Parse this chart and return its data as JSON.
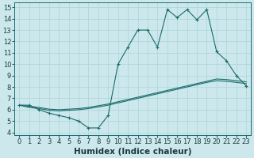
{
  "xlabel": "Humidex (Indice chaleur)",
  "background_color": "#cce8ec",
  "line_color": "#1a6b6b",
  "xlim": [
    -0.5,
    23.5
  ],
  "ylim": [
    3.8,
    15.4
  ],
  "xticks": [
    0,
    1,
    2,
    3,
    4,
    5,
    6,
    7,
    8,
    9,
    10,
    11,
    12,
    13,
    14,
    15,
    16,
    17,
    18,
    19,
    20,
    21,
    22,
    23
  ],
  "yticks": [
    4,
    5,
    6,
    7,
    8,
    9,
    10,
    11,
    12,
    13,
    14,
    15
  ],
  "line1_x": [
    0,
    1,
    2,
    3,
    4,
    5,
    6,
    7,
    8,
    9,
    10,
    11,
    12,
    13,
    14,
    15,
    16,
    17,
    18,
    19,
    20,
    21,
    22,
    23
  ],
  "line1_y": [
    6.4,
    6.4,
    6.0,
    5.7,
    5.5,
    5.3,
    5.0,
    4.4,
    4.4,
    5.5,
    10.0,
    11.5,
    13.0,
    13.0,
    11.5,
    14.8,
    14.1,
    14.8,
    13.9,
    14.8,
    11.1,
    10.3,
    9.0,
    8.1
  ],
  "line2_x": [
    0,
    1,
    2,
    3,
    4,
    5,
    6,
    7,
    8,
    9,
    10,
    11,
    12,
    13,
    14,
    15,
    16,
    17,
    18,
    19,
    20,
    21,
    22,
    23
  ],
  "line2_y": [
    6.4,
    6.2,
    6.1,
    5.95,
    5.9,
    5.95,
    6.0,
    6.1,
    6.25,
    6.4,
    6.6,
    6.8,
    7.0,
    7.2,
    7.4,
    7.6,
    7.8,
    8.0,
    8.2,
    8.4,
    8.55,
    8.5,
    8.4,
    8.3
  ],
  "line3_x": [
    0,
    1,
    2,
    3,
    4,
    5,
    6,
    7,
    8,
    9,
    10,
    11,
    12,
    13,
    14,
    15,
    16,
    17,
    18,
    19,
    20,
    21,
    22,
    23
  ],
  "line3_y": [
    6.4,
    6.3,
    6.2,
    6.05,
    6.0,
    6.05,
    6.1,
    6.2,
    6.35,
    6.5,
    6.7,
    6.9,
    7.1,
    7.3,
    7.5,
    7.7,
    7.9,
    8.1,
    8.3,
    8.5,
    8.7,
    8.65,
    8.55,
    8.45
  ],
  "grid_color": "#b0d8dc",
  "tick_fontsize": 6.0,
  "xlabel_fontsize": 7.5
}
